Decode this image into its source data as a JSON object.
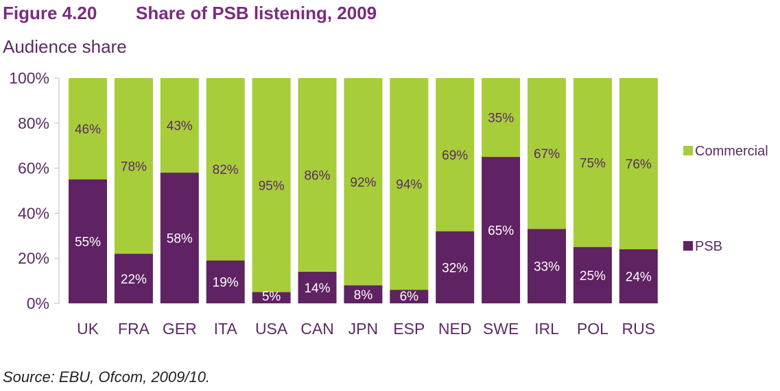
{
  "figure": {
    "number": "Figure 4.20",
    "title": "Share of PSB listening, 2009",
    "subtitle": "Audience share",
    "source": "Source: EBU, Ofcom, 2009/10."
  },
  "colors": {
    "psb": "#5f2262",
    "commercial": "#a7cd3a",
    "text": "#5b2a63",
    "title": "#7b2a80"
  },
  "chart_data": {
    "type": "bar",
    "stacked": true,
    "categories": [
      "UK",
      "FRA",
      "GER",
      "ITA",
      "USA",
      "CAN",
      "JPN",
      "ESP",
      "NED",
      "SWE",
      "IRL",
      "POL",
      "RUS"
    ],
    "series": [
      {
        "name": "PSB",
        "values": [
          55,
          22,
          58,
          19,
          5,
          14,
          8,
          6,
          32,
          65,
          33,
          25,
          24
        ],
        "labels": [
          "55%",
          "22%",
          "58%",
          "19%",
          "5%",
          "14%",
          "8%",
          "6%",
          "32%",
          "65%",
          "33%",
          "25%",
          "24%"
        ]
      },
      {
        "name": "Commercial",
        "values": [
          46,
          78,
          43,
          82,
          95,
          86,
          92,
          94,
          69,
          35,
          67,
          75,
          76
        ],
        "labels": [
          "46%",
          "78%",
          "43%",
          "82%",
          "95%",
          "86%",
          "92%",
          "94%",
          "69%",
          "35%",
          "67%",
          "75%",
          "76%"
        ]
      }
    ],
    "ylim": [
      0,
      100
    ],
    "yticks": [
      "0%",
      "20%",
      "40%",
      "60%",
      "80%",
      "100%"
    ],
    "legend": [
      "Commercial",
      "PSB"
    ],
    "legend_position": "right",
    "grid": false
  }
}
